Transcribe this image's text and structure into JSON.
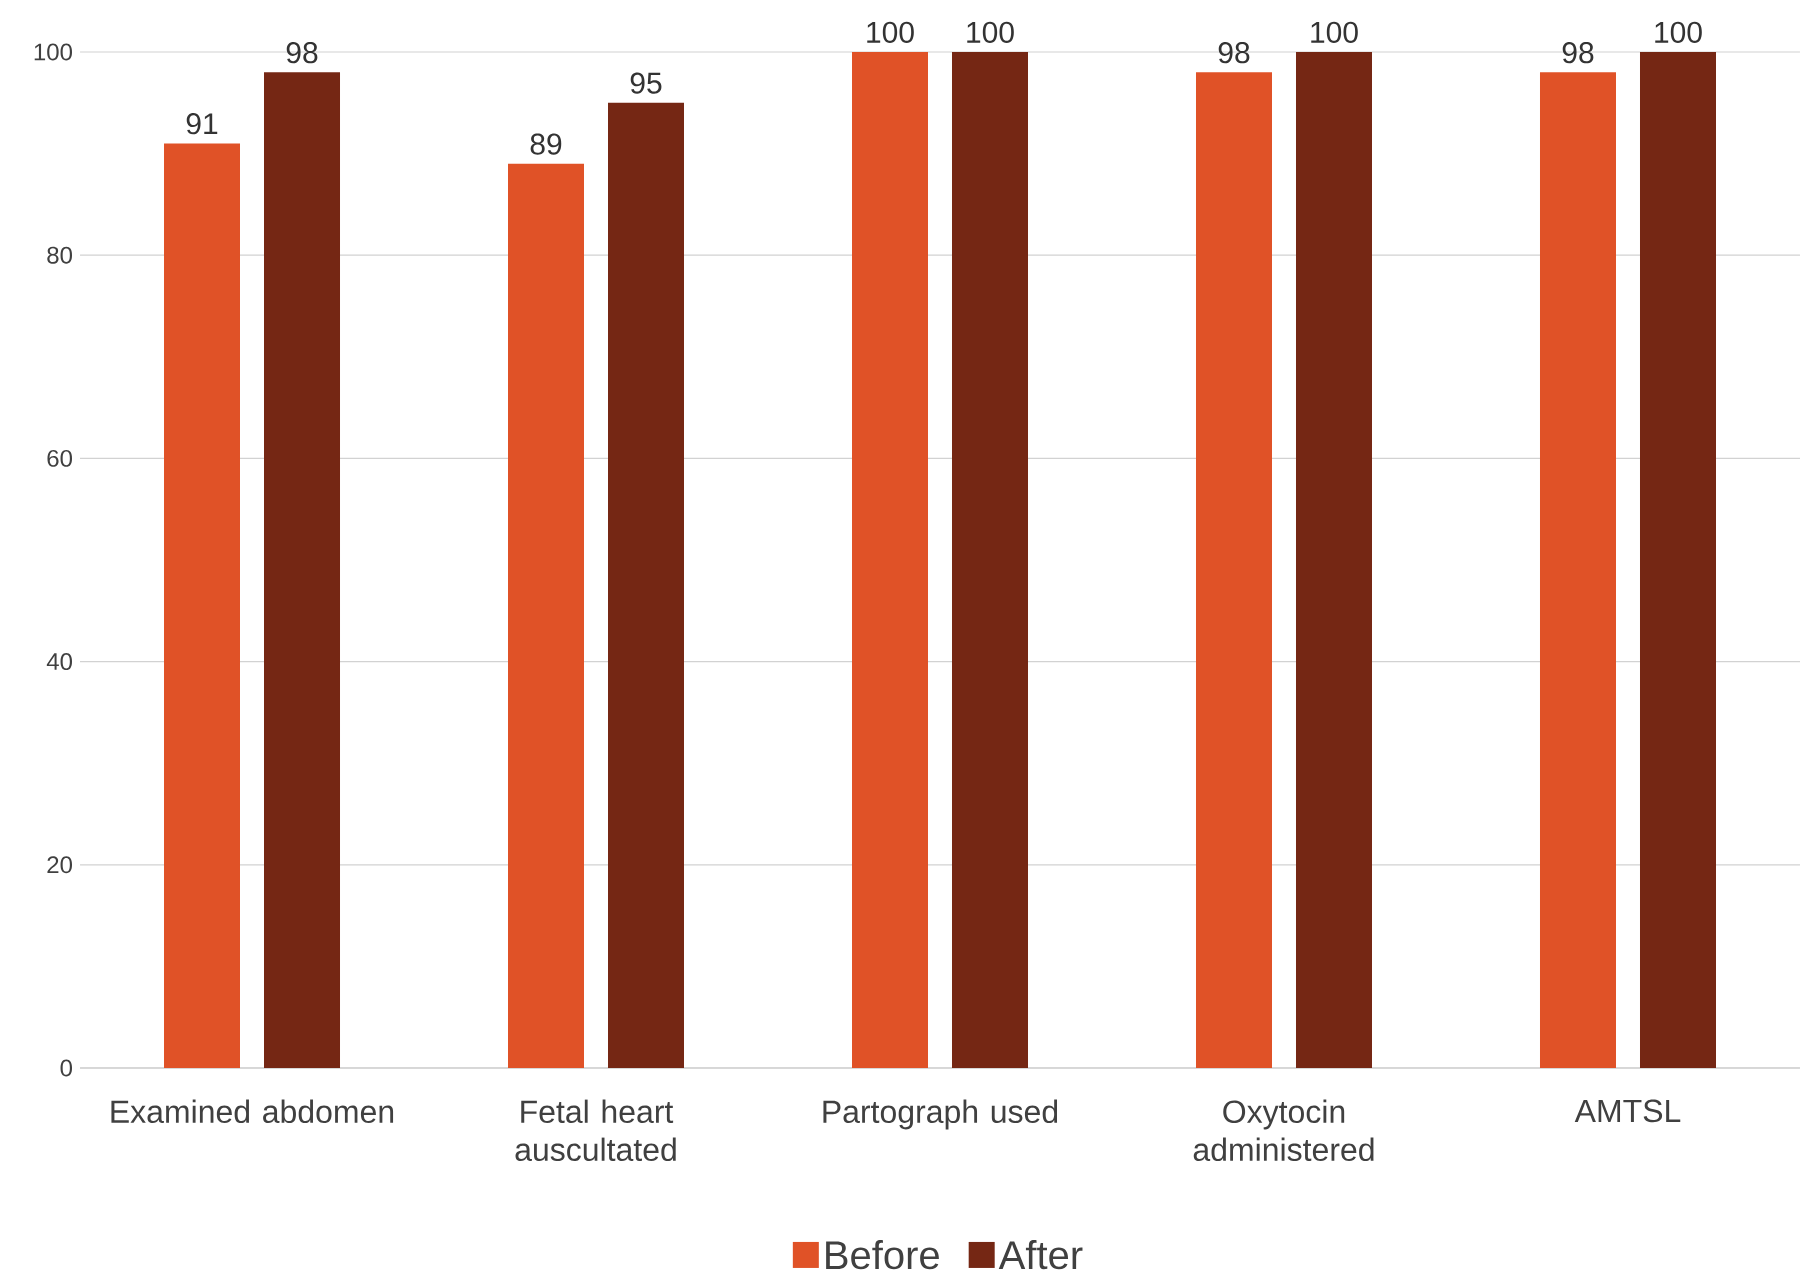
{
  "chart_data": {
    "type": "bar",
    "categories": [
      "Examined abdomen",
      "Fetal heart auscultated",
      "Partograph used",
      "Oxytocin administered",
      "AMTSL"
    ],
    "series": [
      {
        "name": "Before",
        "color": "#e05227",
        "values": [
          91,
          89,
          100,
          98,
          98
        ]
      },
      {
        "name": "After",
        "color": "#752714",
        "values": [
          98,
          95,
          100,
          100,
          100
        ]
      }
    ],
    "ylim": [
      0,
      100
    ],
    "yticks": [
      0,
      20,
      40,
      60,
      80,
      100
    ],
    "grid": "y",
    "legend": "bottom",
    "data_labels": true
  }
}
